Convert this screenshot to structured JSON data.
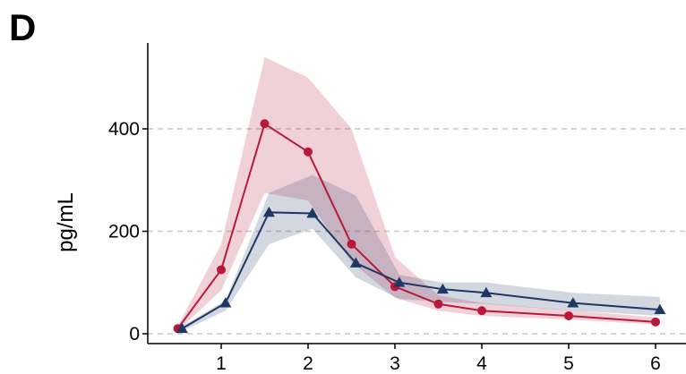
{
  "panel_label": "D",
  "chart_data": {
    "type": "line",
    "title": "",
    "xlabel": "",
    "ylabel": "pg/mL",
    "xlim": [
      0.4,
      6.3
    ],
    "ylim": [
      -10,
      560
    ],
    "xticks": [
      1,
      2,
      3,
      4,
      5,
      6
    ],
    "yticks": [
      0,
      200,
      400
    ],
    "grid": "horizontal dashed at y ticks",
    "legend": "none",
    "series": [
      {
        "color": "#b8193a",
        "marker": "circle",
        "x": [
          0.5,
          1.0,
          1.5,
          2.0,
          2.5,
          3.0,
          3.5,
          4.0,
          5.0,
          6.0
        ],
        "values": [
          10,
          125,
          410,
          355,
          175,
          92,
          58,
          45,
          35,
          23
        ],
        "band_lower": [
          5,
          85,
          275,
          260,
          140,
          70,
          45,
          35,
          28,
          18
        ],
        "band_upper": [
          15,
          175,
          540,
          500,
          400,
          150,
          75,
          60,
          46,
          32
        ]
      },
      {
        "color": "#1f3762",
        "marker": "triangle",
        "x": [
          0.55,
          1.05,
          1.55,
          2.05,
          2.55,
          3.05,
          3.55,
          4.05,
          5.05,
          6.05
        ],
        "values": [
          10,
          60,
          237,
          235,
          138,
          100,
          87,
          80,
          60,
          47
        ],
        "band_lower": [
          5,
          45,
          175,
          205,
          110,
          68,
          62,
          58,
          45,
          35
        ],
        "band_upper": [
          15,
          65,
          275,
          310,
          270,
          115,
          100,
          100,
          80,
          72
        ]
      }
    ]
  }
}
